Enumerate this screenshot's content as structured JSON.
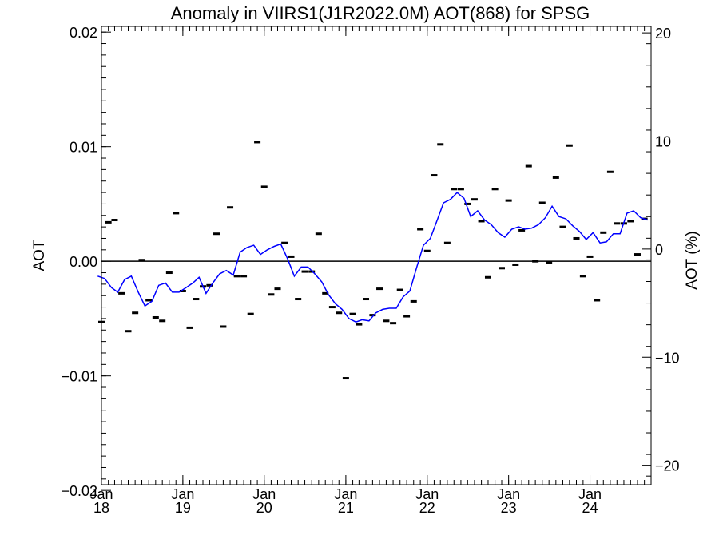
{
  "chart_data": {
    "type": "line",
    "title": "Anomaly in VIIRS1(J1R2022.0M) AOT(868) for SPSG",
    "ylabel": "AOT",
    "ylabel_right": "AOT (%)",
    "xlabel": "",
    "xlim": [
      "2018-01-01",
      "2024-10-01"
    ],
    "ylim": [
      -0.0195,
      0.0205
    ],
    "ylim_right": [
      -21.8,
      20.6
    ],
    "yticks": [
      -0.02,
      -0.01,
      0.0,
      0.01,
      0.02
    ],
    "ytick_labels": [
      "−0.02",
      "−0.01",
      "0.00",
      "0.01",
      "0.02"
    ],
    "yticks_right": [
      -20,
      -10,
      0,
      10,
      20
    ],
    "ytick_labels_right": [
      "−20",
      "−10",
      "0",
      "10",
      "20"
    ],
    "xticks": [
      {
        "date": "2018-01-01",
        "month": "Jan",
        "year": "18"
      },
      {
        "date": "2019-01-01",
        "month": "Jan",
        "year": "19"
      },
      {
        "date": "2020-01-01",
        "month": "Jan",
        "year": "20"
      },
      {
        "date": "2021-01-01",
        "month": "Jan",
        "year": "21"
      },
      {
        "date": "2022-01-01",
        "month": "Jan",
        "year": "22"
      },
      {
        "date": "2023-01-01",
        "month": "Jan",
        "year": "23"
      },
      {
        "date": "2024-01-01",
        "month": "Jan",
        "year": "24"
      }
    ],
    "zero_line": 0.0,
    "grid": false,
    "series": [
      {
        "kind": "monthly-markers",
        "color": "#000000",
        "points": [
          [
            "2017-12-01",
            -0.0077
          ],
          [
            "2018-01-01",
            -0.0053
          ],
          [
            "2018-02-01",
            0.0034
          ],
          [
            "2018-03-01",
            0.0036
          ],
          [
            "2018-04-01",
            -0.0028
          ],
          [
            "2018-05-01",
            -0.0061
          ],
          [
            "2018-06-01",
            -0.0045
          ],
          [
            "2018-07-01",
            0.0001
          ],
          [
            "2018-08-01",
            -0.0034
          ],
          [
            "2018-09-01",
            -0.0049
          ],
          [
            "2018-10-01",
            -0.0052
          ],
          [
            "2018-11-01",
            -0.001
          ],
          [
            "2018-12-01",
            0.0042
          ],
          [
            "2019-01-01",
            -0.0026
          ],
          [
            "2019-02-01",
            -0.0058
          ],
          [
            "2019-03-01",
            -0.0033
          ],
          [
            "2019-04-01",
            -0.0022
          ],
          [
            "2019-05-01",
            -0.0021
          ],
          [
            "2019-06-01",
            0.0024
          ],
          [
            "2019-07-01",
            -0.0057
          ],
          [
            "2019-08-01",
            0.0047
          ],
          [
            "2019-09-01",
            -0.0013
          ],
          [
            "2019-10-01",
            -0.0013
          ],
          [
            "2019-11-01",
            -0.0046
          ],
          [
            "2019-12-01",
            0.0104
          ],
          [
            "2020-01-01",
            0.0065
          ],
          [
            "2020-02-01",
            -0.0029
          ],
          [
            "2020-03-01",
            -0.0024
          ],
          [
            "2020-04-01",
            0.0016
          ],
          [
            "2020-05-01",
            0.0004
          ],
          [
            "2020-06-01",
            -0.0033
          ],
          [
            "2020-07-01",
            -0.0009
          ],
          [
            "2020-08-01",
            -0.0009
          ],
          [
            "2020-09-01",
            0.0024
          ],
          [
            "2020-10-01",
            -0.0028
          ],
          [
            "2020-11-01",
            -0.004
          ],
          [
            "2020-12-01",
            -0.0045
          ],
          [
            "2021-01-01",
            -0.0102
          ],
          [
            "2021-02-01",
            -0.0046
          ],
          [
            "2021-03-01",
            -0.0055
          ],
          [
            "2021-04-01",
            -0.0033
          ],
          [
            "2021-05-01",
            -0.0047
          ],
          [
            "2021-06-01",
            -0.0024
          ],
          [
            "2021-07-01",
            -0.0052
          ],
          [
            "2021-08-01",
            -0.0054
          ],
          [
            "2021-09-01",
            -0.0025
          ],
          [
            "2021-10-01",
            -0.0048
          ],
          [
            "2021-11-01",
            -0.0035
          ],
          [
            "2021-12-01",
            0.0028
          ],
          [
            "2022-01-01",
            0.0009
          ],
          [
            "2022-02-01",
            0.0075
          ],
          [
            "2022-03-01",
            0.0102
          ],
          [
            "2022-04-01",
            0.0016
          ],
          [
            "2022-05-01",
            0.0063
          ],
          [
            "2022-06-01",
            0.0063
          ],
          [
            "2022-07-01",
            0.005
          ],
          [
            "2022-08-01",
            0.0054
          ],
          [
            "2022-09-01",
            0.0035
          ],
          [
            "2022-10-01",
            -0.0014
          ],
          [
            "2022-11-01",
            0.0063
          ],
          [
            "2022-12-01",
            -0.0006
          ],
          [
            "2023-01-01",
            0.0053
          ],
          [
            "2023-02-01",
            -0.0003
          ],
          [
            "2023-03-01",
            0.0027
          ],
          [
            "2023-04-01",
            0.0083
          ],
          [
            "2023-05-01",
            0.0
          ],
          [
            "2023-06-01",
            0.0051
          ],
          [
            "2023-07-01",
            -0.0001
          ],
          [
            "2023-08-01",
            0.0073
          ],
          [
            "2023-09-01",
            0.003
          ],
          [
            "2023-10-01",
            0.0101
          ],
          [
            "2023-11-01",
            0.002
          ],
          [
            "2023-12-01",
            -0.0013
          ],
          [
            "2024-01-01",
            0.0004
          ],
          [
            "2024-02-01",
            -0.0034
          ],
          [
            "2024-03-01",
            0.0025
          ],
          [
            "2024-04-01",
            0.0078
          ],
          [
            "2024-05-01",
            0.0033
          ],
          [
            "2024-06-01",
            0.0033
          ],
          [
            "2024-07-01",
            0.0035
          ],
          [
            "2024-08-01",
            0.0006
          ],
          [
            "2024-09-01",
            0.0037
          ]
        ]
      },
      {
        "kind": "running-mean",
        "color": "#0000ff",
        "points": [
          [
            "2017-12-15",
            -0.0013
          ],
          [
            "2018-01-15",
            -0.0015
          ],
          [
            "2018-02-15",
            -0.0023
          ],
          [
            "2018-03-15",
            -0.0027
          ],
          [
            "2018-04-15",
            -0.0016
          ],
          [
            "2018-05-15",
            -0.0013
          ],
          [
            "2018-06-15",
            -0.0027
          ],
          [
            "2018-07-15",
            -0.0039
          ],
          [
            "2018-08-15",
            -0.0035
          ],
          [
            "2018-09-15",
            -0.0021
          ],
          [
            "2018-10-15",
            -0.0019
          ],
          [
            "2018-11-15",
            -0.0027
          ],
          [
            "2018-12-15",
            -0.0027
          ],
          [
            "2019-01-15",
            -0.0023
          ],
          [
            "2019-02-15",
            -0.0019
          ],
          [
            "2019-03-15",
            -0.0014
          ],
          [
            "2019-04-15",
            -0.0028
          ],
          [
            "2019-05-15",
            -0.0019
          ],
          [
            "2019-06-15",
            -0.0011
          ],
          [
            "2019-07-15",
            -0.0008
          ],
          [
            "2019-08-15",
            -0.0012
          ],
          [
            "2019-09-15",
            0.0008
          ],
          [
            "2019-10-15",
            0.0012
          ],
          [
            "2019-11-15",
            0.0014
          ],
          [
            "2019-12-15",
            0.0006
          ],
          [
            "2020-01-15",
            0.001
          ],
          [
            "2020-02-15",
            0.0013
          ],
          [
            "2020-03-15",
            0.0015
          ],
          [
            "2020-04-15",
            0.0002
          ],
          [
            "2020-05-15",
            -0.0013
          ],
          [
            "2020-06-15",
            -0.0005
          ],
          [
            "2020-07-15",
            -0.0005
          ],
          [
            "2020-08-15",
            -0.0011
          ],
          [
            "2020-09-15",
            -0.0018
          ],
          [
            "2020-10-15",
            -0.0029
          ],
          [
            "2020-11-15",
            -0.0037
          ],
          [
            "2020-12-15",
            -0.0042
          ],
          [
            "2021-01-15",
            -0.005
          ],
          [
            "2021-02-15",
            -0.0053
          ],
          [
            "2021-03-15",
            -0.0051
          ],
          [
            "2021-04-15",
            -0.0052
          ],
          [
            "2021-05-15",
            -0.0045
          ],
          [
            "2021-06-15",
            -0.0042
          ],
          [
            "2021-07-15",
            -0.0041
          ],
          [
            "2021-08-15",
            -0.0041
          ],
          [
            "2021-09-15",
            -0.0031
          ],
          [
            "2021-10-15",
            -0.0026
          ],
          [
            "2021-11-15",
            -0.0005
          ],
          [
            "2021-12-15",
            0.0014
          ],
          [
            "2022-01-15",
            0.002
          ],
          [
            "2022-02-15",
            0.0036
          ],
          [
            "2022-03-15",
            0.0051
          ],
          [
            "2022-04-15",
            0.0054
          ],
          [
            "2022-05-15",
            0.006
          ],
          [
            "2022-06-15",
            0.0055
          ],
          [
            "2022-07-15",
            0.0039
          ],
          [
            "2022-08-15",
            0.0044
          ],
          [
            "2022-09-15",
            0.0036
          ],
          [
            "2022-10-15",
            0.0032
          ],
          [
            "2022-11-15",
            0.0025
          ],
          [
            "2022-12-15",
            0.0021
          ],
          [
            "2023-01-15",
            0.0028
          ],
          [
            "2023-02-15",
            0.003
          ],
          [
            "2023-03-15",
            0.0028
          ],
          [
            "2023-04-15",
            0.0029
          ],
          [
            "2023-05-15",
            0.0032
          ],
          [
            "2023-06-15",
            0.0038
          ],
          [
            "2023-07-15",
            0.0048
          ],
          [
            "2023-08-15",
            0.0039
          ],
          [
            "2023-09-15",
            0.0037
          ],
          [
            "2023-10-15",
            0.0031
          ],
          [
            "2023-11-15",
            0.0026
          ],
          [
            "2023-12-15",
            0.0019
          ],
          [
            "2024-01-15",
            0.0025
          ],
          [
            "2024-02-15",
            0.0016
          ],
          [
            "2024-03-15",
            0.0017
          ],
          [
            "2024-04-15",
            0.0024
          ],
          [
            "2024-05-15",
            0.0024
          ],
          [
            "2024-06-15",
            0.0042
          ],
          [
            "2024-07-15",
            0.0044
          ],
          [
            "2024-08-15",
            0.0038
          ],
          [
            "2024-09-15",
            0.0036
          ]
        ]
      }
    ]
  }
}
